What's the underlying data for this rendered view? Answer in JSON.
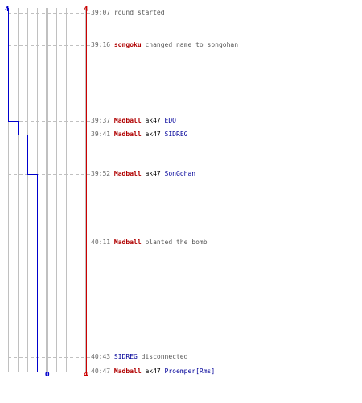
{
  "scores": {
    "team_blue_start": "4",
    "team_red_start": "4",
    "team_blue_end": "0",
    "team_red_end": "4"
  },
  "colors": {
    "team_blue": "#0000cc",
    "team_red": "#cc0000",
    "grid": "#c0c0c0",
    "dash": "#c0c0c0",
    "center": "#808080"
  },
  "timeline": {
    "start_seconds": 2347,
    "end_seconds": 2447
  },
  "events": [
    {
      "time": "39:07",
      "seconds": 2347,
      "parts": [
        {
          "text": "round started",
          "style": "plain"
        }
      ]
    },
    {
      "time": "39:16",
      "seconds": 2356,
      "parts": [
        {
          "text": "songoku",
          "style": "red"
        },
        {
          "text": " changed name to songohan",
          "style": "plain"
        }
      ]
    },
    {
      "time": "39:37",
      "seconds": 2377,
      "blue_after": 3,
      "parts": [
        {
          "text": "Madball",
          "style": "red"
        },
        {
          "text": " ak47 ",
          "style": "weapon"
        },
        {
          "text": "EDO",
          "style": "blue"
        }
      ]
    },
    {
      "time": "39:41",
      "seconds": 2381,
      "blue_after": 2,
      "parts": [
        {
          "text": "Madball",
          "style": "red"
        },
        {
          "text": " ak47 ",
          "style": "weapon"
        },
        {
          "text": "SIDREG",
          "style": "blue"
        }
      ]
    },
    {
      "time": "39:52",
      "seconds": 2392,
      "blue_after": 1,
      "parts": [
        {
          "text": "Madball",
          "style": "red"
        },
        {
          "text": " ak47 ",
          "style": "weapon"
        },
        {
          "text": "SonGohan",
          "style": "blue"
        }
      ]
    },
    {
      "time": "40:11",
      "seconds": 2411,
      "parts": [
        {
          "text": "Madball",
          "style": "red"
        },
        {
          "text": " planted the bomb",
          "style": "plain"
        }
      ]
    },
    {
      "time": "40:43",
      "seconds": 2443,
      "parts": [
        {
          "text": "SIDREG",
          "style": "blue"
        },
        {
          "text": " disconnected",
          "style": "plain"
        }
      ]
    },
    {
      "time": "40:47",
      "seconds": 2447,
      "blue_after": 0,
      "parts": [
        {
          "text": "Madball",
          "style": "red"
        },
        {
          "text": " ak47 ",
          "style": "weapon"
        },
        {
          "text": "Proemper[Rms]",
          "style": "blue"
        }
      ]
    }
  ]
}
